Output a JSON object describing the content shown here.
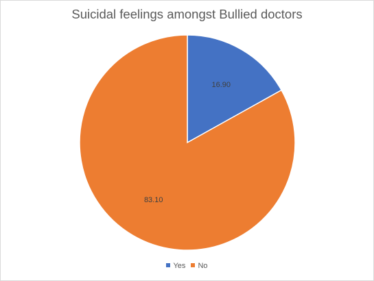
{
  "chart_data": {
    "type": "pie",
    "title": "Suicidal feelings amongst Bullied doctors",
    "categories": [
      "Yes",
      "No"
    ],
    "values": [
      16.9,
      83.1
    ],
    "data_labels": [
      "16.90",
      "83.10"
    ],
    "colors": [
      "#4472c4",
      "#ed7d31"
    ],
    "legend_position": "bottom"
  }
}
